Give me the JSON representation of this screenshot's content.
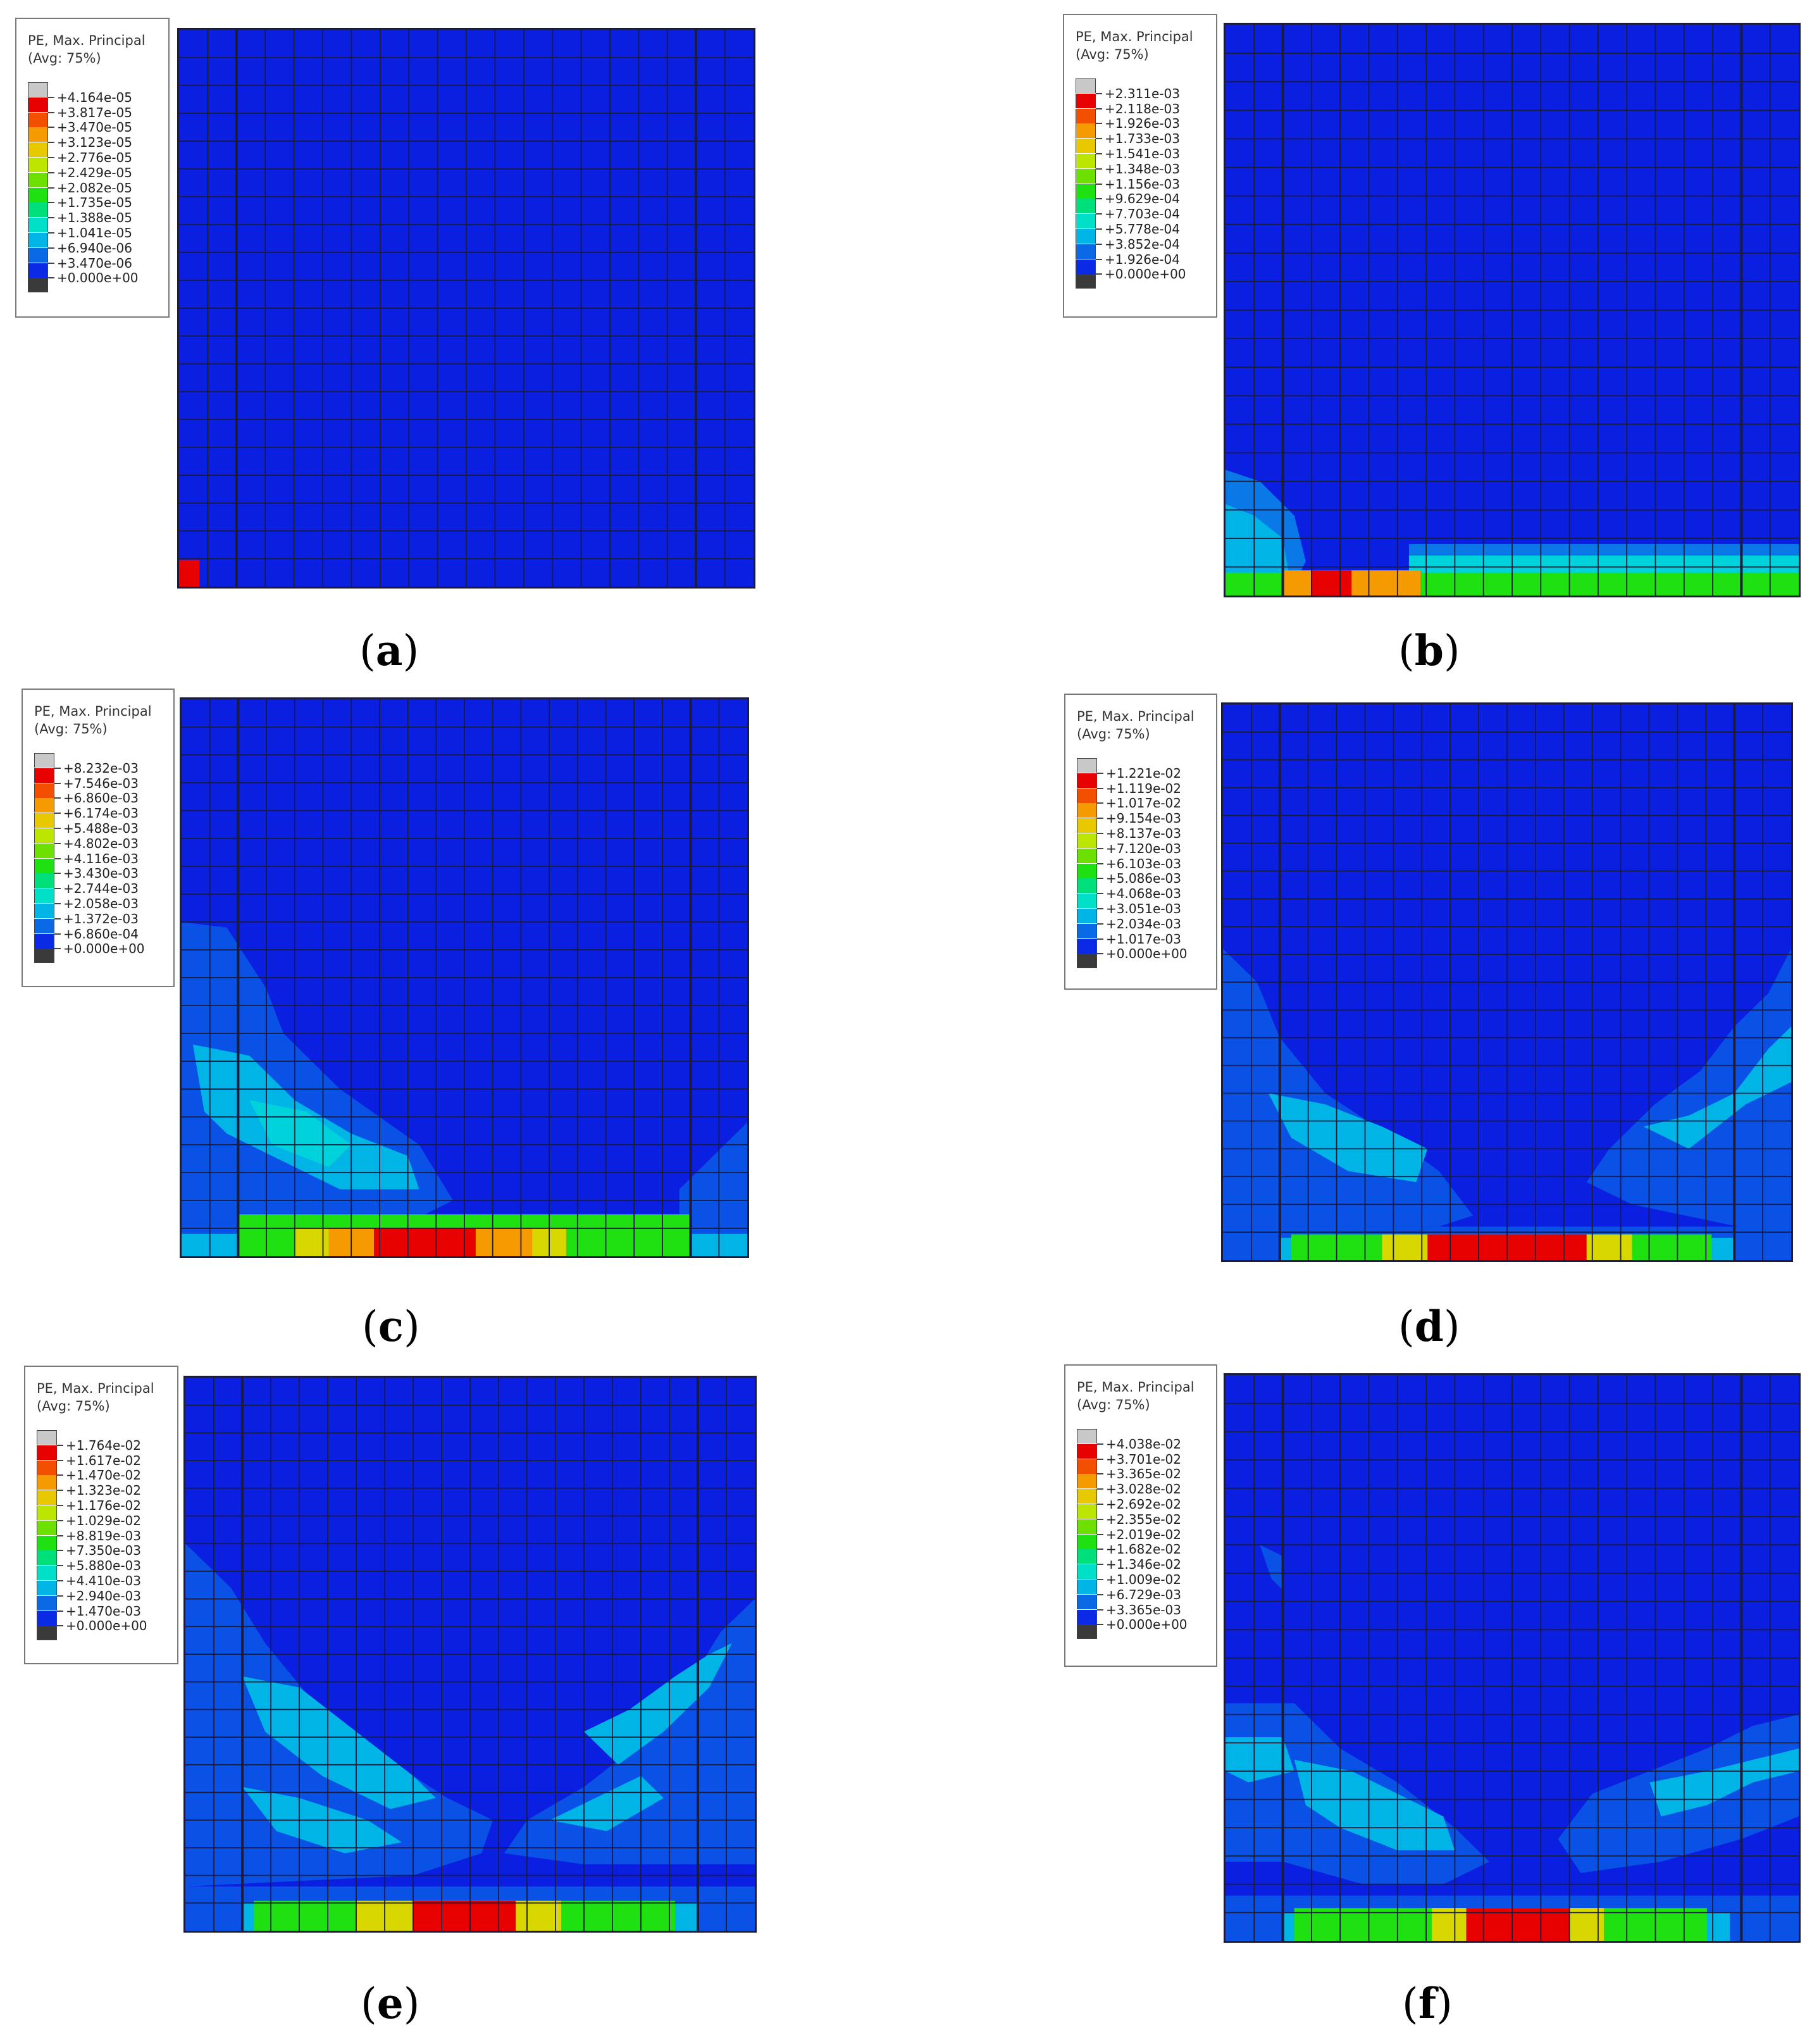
{
  "legend_title_line1": "PE, Max. Principal",
  "legend_title_line2": "(Avg: 75%)",
  "colors": {
    "mesh_base": "#0a1fe0",
    "mesh_line": "#1b1b3a",
    "scale": [
      "#c8c8c8",
      "#e60000",
      "#f25000",
      "#f59a00",
      "#e8c800",
      "#bce600",
      "#6ee000",
      "#1fe010",
      "#00e07a",
      "#00e0c8",
      "#00b4e6",
      "#0a6ae6",
      "#0a2ae6",
      "#3a3a3a"
    ]
  },
  "panels": [
    {
      "label": "a",
      "legend_values": [
        "+4.164e-05",
        "+3.817e-05",
        "+3.470e-05",
        "+3.123e-05",
        "+2.776e-05",
        "+2.429e-05",
        "+2.082e-05",
        "+1.735e-05",
        "+1.388e-05",
        "+1.041e-05",
        "+6.940e-06",
        "+3.470e-06",
        "+0.000e+00"
      ]
    },
    {
      "label": "b",
      "legend_values": [
        "+2.311e-03",
        "+2.118e-03",
        "+1.926e-03",
        "+1.733e-03",
        "+1.541e-03",
        "+1.348e-03",
        "+1.156e-03",
        "+9.629e-04",
        "+7.703e-04",
        "+5.778e-04",
        "+3.852e-04",
        "+1.926e-04",
        "+0.000e+00"
      ]
    },
    {
      "label": "c",
      "legend_values": [
        "+8.232e-03",
        "+7.546e-03",
        "+6.860e-03",
        "+6.174e-03",
        "+5.488e-03",
        "+4.802e-03",
        "+4.116e-03",
        "+3.430e-03",
        "+2.744e-03",
        "+2.058e-03",
        "+1.372e-03",
        "+6.860e-04",
        "+0.000e+00"
      ]
    },
    {
      "label": "d",
      "legend_values": [
        "+1.221e-02",
        "+1.119e-02",
        "+1.017e-02",
        "+9.154e-03",
        "+8.137e-03",
        "+7.120e-03",
        "+6.103e-03",
        "+5.086e-03",
        "+4.068e-03",
        "+3.051e-03",
        "+2.034e-03",
        "+1.017e-03",
        "+0.000e+00"
      ]
    },
    {
      "label": "e",
      "legend_values": [
        "+1.764e-02",
        "+1.617e-02",
        "+1.470e-02",
        "+1.323e-02",
        "+1.176e-02",
        "+1.029e-02",
        "+8.819e-03",
        "+7.350e-03",
        "+5.880e-03",
        "+4.410e-03",
        "+2.940e-03",
        "+1.470e-03",
        "+0.000e+00"
      ]
    },
    {
      "label": "f",
      "legend_values": [
        "+4.038e-02",
        "+3.701e-02",
        "+3.365e-02",
        "+3.028e-02",
        "+2.692e-02",
        "+2.355e-02",
        "+2.019e-02",
        "+1.682e-02",
        "+1.346e-02",
        "+1.009e-02",
        "+6.729e-03",
        "+3.365e-03",
        "+0.000e+00"
      ]
    }
  ],
  "captions": {
    "a": {
      "open": "(",
      "letter": "a",
      "close": ")"
    },
    "b": {
      "open": "(",
      "letter": "b",
      "close": ")"
    },
    "c": {
      "open": "(",
      "letter": "c",
      "close": ")"
    },
    "d": {
      "open": "(",
      "letter": "d",
      "close": ")"
    },
    "e": {
      "open": "(",
      "letter": "e",
      "close": ")"
    },
    "f": {
      "open": "(",
      "letter": "f",
      "close": ")"
    }
  }
}
